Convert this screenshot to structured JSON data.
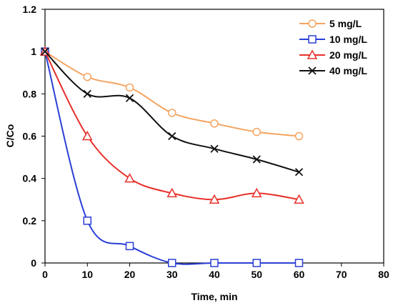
{
  "chart_data": {
    "type": "line",
    "title": "",
    "xlabel": "Time, min",
    "ylabel": "C/Co",
    "xlim": [
      0,
      80
    ],
    "ylim": [
      0,
      1.2
    ],
    "x_ticks": [
      "0",
      "10",
      "20",
      "30",
      "40",
      "50",
      "60",
      "70",
      "80"
    ],
    "y_ticks": [
      "0",
      "0.2",
      "0.4",
      "0.6",
      "0.8",
      "1",
      "1.2"
    ],
    "grid": false,
    "legend_position": "top-right",
    "x": [
      0,
      10,
      20,
      30,
      40,
      50,
      60
    ],
    "series": [
      {
        "name": "5 mg/L",
        "color": "#f4a460",
        "marker": "circle",
        "values": [
          1.0,
          0.88,
          0.83,
          0.71,
          0.66,
          0.62,
          0.6
        ]
      },
      {
        "name": "10 mg/L",
        "color": "#2b3fd6",
        "marker": "square",
        "values": [
          1.0,
          0.2,
          0.08,
          0.0,
          0.0,
          0.0,
          0.0
        ]
      },
      {
        "name": "20 mg/L",
        "color": "#e8302a",
        "marker": "triangle",
        "values": [
          1.0,
          0.6,
          0.4,
          0.33,
          0.3,
          0.33,
          0.3
        ]
      },
      {
        "name": "40 mg/L",
        "color": "#111111",
        "marker": "x",
        "values": [
          1.0,
          0.8,
          0.78,
          0.6,
          0.54,
          0.49,
          0.43
        ]
      }
    ]
  }
}
